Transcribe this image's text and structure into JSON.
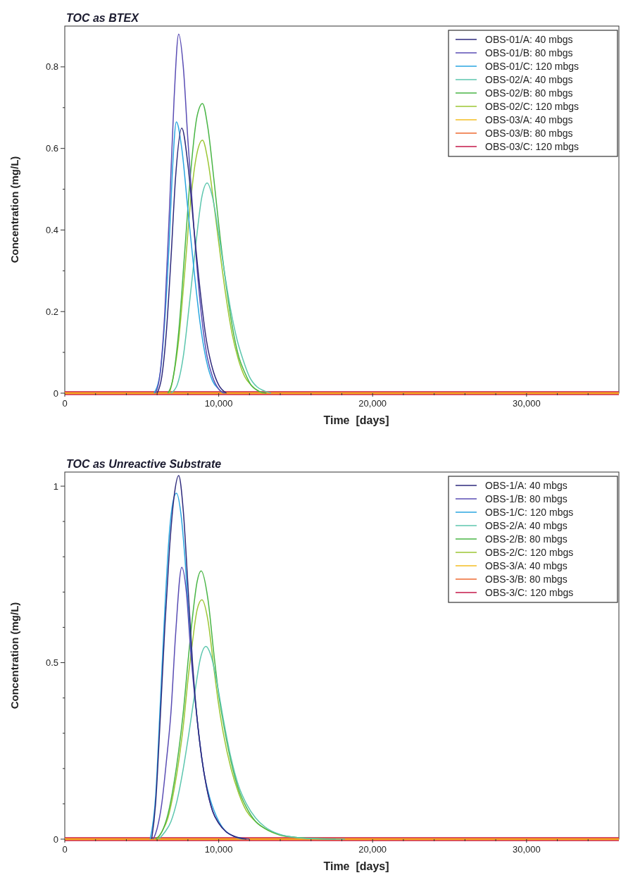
{
  "chart_data": [
    {
      "type": "line",
      "title": "TOC as BTEX",
      "xlabel": "Time  [days]",
      "ylabel": "Concentration (mg/L)",
      "xlim": [
        0,
        36000
      ],
      "ylim": [
        0,
        0.9
      ],
      "xticks": [
        0,
        {
          "value": 2000,
          "label": null
        },
        {
          "value": 4000,
          "label": null
        },
        {
          "value": 6000,
          "label": null
        },
        {
          "value": 8000,
          "label": null
        },
        {
          "value": 10000,
          "label": "10,000"
        },
        {
          "value": 12000,
          "label": null
        },
        {
          "value": 14000,
          "label": null
        },
        {
          "value": 16000,
          "label": null
        },
        {
          "value": 18000,
          "label": null
        },
        {
          "value": 20000,
          "label": "20,000"
        },
        {
          "value": 22000,
          "label": null
        },
        {
          "value": 24000,
          "label": null
        },
        {
          "value": 26000,
          "label": null
        },
        {
          "value": 28000,
          "label": null
        },
        {
          "value": 30000,
          "label": "30,000"
        },
        {
          "value": 32000,
          "label": null
        },
        {
          "value": 34000,
          "label": null
        }
      ],
      "yticks": [
        0,
        {
          "value": 0.1,
          "label": null
        },
        0.2,
        {
          "value": 0.3,
          "label": null
        },
        0.4,
        {
          "value": 0.5,
          "label": null
        },
        0.6,
        {
          "value": 0.7,
          "label": null
        },
        0.8
      ],
      "grid": false,
      "legend": "top right",
      "marker": "none",
      "line_style": "solid",
      "series": [
        {
          "name": "OBS-01/A: 40 mbgs",
          "color": "#2e2a7c",
          "x": [
            6000,
            6300,
            6600,
            6900,
            7200,
            7600,
            8000,
            8400,
            8800,
            9200,
            9600,
            10000,
            10500
          ],
          "values": [
            0,
            0.04,
            0.15,
            0.33,
            0.53,
            0.65,
            0.56,
            0.4,
            0.25,
            0.13,
            0.06,
            0.02,
            0
          ]
        },
        {
          "name": "OBS-01/B: 80 mbgs",
          "color": "#5a4db4",
          "x": [
            5900,
            6200,
            6500,
            6800,
            7100,
            7400,
            7700,
            8000,
            8400,
            8800,
            9200,
            9600,
            10000,
            10400
          ],
          "values": [
            0,
            0.05,
            0.2,
            0.45,
            0.72,
            0.88,
            0.8,
            0.62,
            0.4,
            0.22,
            0.1,
            0.04,
            0.01,
            0
          ]
        },
        {
          "name": "OBS-01/C: 120 mbgs",
          "color": "#2aa6e0",
          "x": [
            5800,
            6200,
            6500,
            6800,
            7000,
            7250,
            7600,
            8000,
            8400,
            8800,
            9200,
            9600,
            10000,
            10300
          ],
          "values": [
            0,
            0.05,
            0.18,
            0.38,
            0.55,
            0.665,
            0.6,
            0.45,
            0.3,
            0.17,
            0.08,
            0.03,
            0.01,
            0
          ]
        },
        {
          "name": "OBS-02/A: 40 mbgs",
          "color": "#5cc6ae",
          "x": [
            6900,
            7300,
            7700,
            8100,
            8500,
            8900,
            9250,
            9600,
            10000,
            10400,
            10800,
            11200,
            11600,
            12000,
            12500,
            13000,
            13400
          ],
          "values": [
            0,
            0.02,
            0.09,
            0.22,
            0.36,
            0.48,
            0.515,
            0.48,
            0.39,
            0.29,
            0.2,
            0.13,
            0.08,
            0.04,
            0.015,
            0.005,
            0
          ]
        },
        {
          "name": "OBS-02/B: 80 mbgs",
          "color": "#48b545",
          "x": [
            6700,
            7000,
            7400,
            7800,
            8200,
            8600,
            8950,
            9300,
            9700,
            10100,
            10500,
            10900,
            11300,
            11700,
            12100,
            12600,
            13100
          ],
          "values": [
            0,
            0.03,
            0.15,
            0.35,
            0.55,
            0.68,
            0.71,
            0.65,
            0.52,
            0.38,
            0.26,
            0.16,
            0.09,
            0.05,
            0.02,
            0.005,
            0
          ]
        },
        {
          "name": "OBS-02/C: 120 mbgs",
          "color": "#9cc633",
          "x": [
            6800,
            7000,
            7400,
            7800,
            8200,
            8600,
            8950,
            9300,
            9700,
            10100,
            10500,
            10900,
            11300,
            11700,
            12100,
            12600,
            12900
          ],
          "values": [
            0,
            0.03,
            0.13,
            0.3,
            0.48,
            0.59,
            0.62,
            0.57,
            0.46,
            0.34,
            0.23,
            0.14,
            0.08,
            0.04,
            0.02,
            0.005,
            0
          ]
        },
        {
          "name": "OBS-03/A: 40 mbgs",
          "color": "#f4be22",
          "x": [
            0,
            36000
          ],
          "values": [
            0,
            0
          ]
        },
        {
          "name": "OBS-03/B: 80 mbgs",
          "color": "#ee6a32",
          "x": [
            0,
            36000
          ],
          "values": [
            0,
            0
          ]
        },
        {
          "name": "OBS-03/C: 120 mbgs",
          "color": "#c4184a",
          "x": [
            0,
            36000
          ],
          "values": [
            0,
            0
          ]
        }
      ]
    },
    {
      "type": "line",
      "title": "TOC as Unreactive Substrate",
      "xlabel": "Time  [days]",
      "ylabel": "Concentration (mg/L)",
      "xlim": [
        0,
        36000
      ],
      "ylim": [
        0,
        1.04
      ],
      "xticks": [
        0,
        {
          "value": 2000,
          "label": null
        },
        {
          "value": 4000,
          "label": null
        },
        {
          "value": 6000,
          "label": null
        },
        {
          "value": 8000,
          "label": null
        },
        {
          "value": 10000,
          "label": "10,000"
        },
        {
          "value": 12000,
          "label": null
        },
        {
          "value": 14000,
          "label": null
        },
        {
          "value": 16000,
          "label": null
        },
        {
          "value": 18000,
          "label": null
        },
        {
          "value": 20000,
          "label": "20,000"
        },
        {
          "value": 22000,
          "label": null
        },
        {
          "value": 24000,
          "label": null
        },
        {
          "value": 26000,
          "label": null
        },
        {
          "value": 28000,
          "label": null
        },
        {
          "value": 30000,
          "label": "30,000"
        },
        {
          "value": 32000,
          "label": null
        },
        {
          "value": 34000,
          "label": null
        }
      ],
      "yticks": [
        0,
        {
          "value": 0.1,
          "label": null
        },
        {
          "value": 0.2,
          "label": null
        },
        {
          "value": 0.3,
          "label": null
        },
        {
          "value": 0.4,
          "label": null
        },
        0.5,
        {
          "value": 0.6,
          "label": null
        },
        {
          "value": 0.7,
          "label": null
        },
        {
          "value": 0.8,
          "label": null
        },
        {
          "value": 0.9,
          "label": null
        },
        1
      ],
      "grid": false,
      "legend": "top right",
      "marker": "none",
      "line_style": "solid",
      "series": [
        {
          "name": "OBS-1/A: 40 mbgs",
          "color": "#2e2a7c",
          "x": [
            5650,
            5900,
            6200,
            6500,
            6800,
            7100,
            7400,
            7700,
            8000,
            8300,
            8600,
            8900,
            9200,
            9600,
            10000,
            10500,
            11000,
            11800
          ],
          "values": [
            0,
            0.1,
            0.34,
            0.6,
            0.82,
            0.97,
            1.03,
            0.93,
            0.72,
            0.5,
            0.34,
            0.23,
            0.15,
            0.08,
            0.045,
            0.02,
            0.008,
            0
          ]
        },
        {
          "name": "OBS-1/B: 80 mbgs",
          "color": "#5a4db4",
          "x": [
            5750,
            6000,
            6300,
            6600,
            6900,
            7200,
            7600,
            7900,
            8200,
            8600,
            8900,
            9200,
            9600,
            10000,
            10500,
            11000,
            12000
          ],
          "values": [
            0,
            0.03,
            0.1,
            0.22,
            0.36,
            0.58,
            0.77,
            0.7,
            0.52,
            0.34,
            0.23,
            0.15,
            0.08,
            0.045,
            0.02,
            0.008,
            0
          ]
        },
        {
          "name": "OBS-1/C: 120 mbgs",
          "color": "#2aa6e0",
          "x": [
            5550,
            5900,
            6200,
            6500,
            6800,
            7050,
            7250,
            7550,
            7800,
            8100,
            8400,
            8700,
            9000,
            9400,
            9800,
            10300,
            10900,
            11600
          ],
          "values": [
            0,
            0.12,
            0.38,
            0.65,
            0.87,
            0.96,
            0.98,
            0.92,
            0.8,
            0.6,
            0.43,
            0.3,
            0.2,
            0.12,
            0.07,
            0.03,
            0.01,
            0
          ]
        },
        {
          "name": "OBS-2/A: 40 mbgs",
          "color": "#5cc6ae",
          "x": [
            6100,
            6500,
            6900,
            7300,
            7700,
            8100,
            8500,
            8800,
            9170,
            9500,
            9900,
            10300,
            10800,
            11300,
            11800,
            12400,
            13000,
            14000,
            15000,
            16500,
            18200
          ],
          "values": [
            0,
            0.02,
            0.05,
            0.11,
            0.2,
            0.31,
            0.43,
            0.51,
            0.546,
            0.52,
            0.44,
            0.34,
            0.23,
            0.15,
            0.1,
            0.06,
            0.035,
            0.013,
            0.005,
            0.001,
            0
          ]
        },
        {
          "name": "OBS-2/B: 80 mbgs",
          "color": "#48b545",
          "x": [
            5900,
            6300,
            6700,
            7100,
            7400,
            7700,
            8000,
            8300,
            8600,
            8860,
            9300,
            9700,
            10000,
            10300,
            10800,
            11300,
            11800,
            12400,
            13000,
            14000,
            15000,
            17600
          ],
          "values": [
            0,
            0.02,
            0.07,
            0.16,
            0.25,
            0.36,
            0.5,
            0.63,
            0.73,
            0.76,
            0.68,
            0.52,
            0.41,
            0.33,
            0.22,
            0.14,
            0.09,
            0.05,
            0.03,
            0.012,
            0.005,
            0
          ]
        },
        {
          "name": "OBS-2/C: 120 mbgs",
          "color": "#9cc633",
          "x": [
            6000,
            6300,
            6700,
            7100,
            7400,
            7700,
            8000,
            8300,
            8600,
            8910,
            9300,
            9700,
            10000,
            10300,
            10800,
            11300,
            11800,
            12400,
            13000,
            14000,
            15000,
            17000
          ],
          "values": [
            0,
            0.02,
            0.06,
            0.14,
            0.22,
            0.32,
            0.45,
            0.56,
            0.65,
            0.678,
            0.62,
            0.48,
            0.38,
            0.3,
            0.2,
            0.13,
            0.08,
            0.05,
            0.03,
            0.011,
            0.005,
            0
          ]
        },
        {
          "name": "OBS-3/A: 40 mbgs",
          "color": "#f4be22",
          "x": [
            0,
            36000
          ],
          "values": [
            0,
            0
          ]
        },
        {
          "name": "OBS-3/B: 80 mbgs",
          "color": "#ee6a32",
          "x": [
            0,
            36000
          ],
          "values": [
            0,
            0
          ]
        },
        {
          "name": "OBS-3/C: 120 mbgs",
          "color": "#c4184a",
          "x": [
            0,
            36000
          ],
          "values": [
            0,
            0
          ]
        }
      ]
    }
  ]
}
